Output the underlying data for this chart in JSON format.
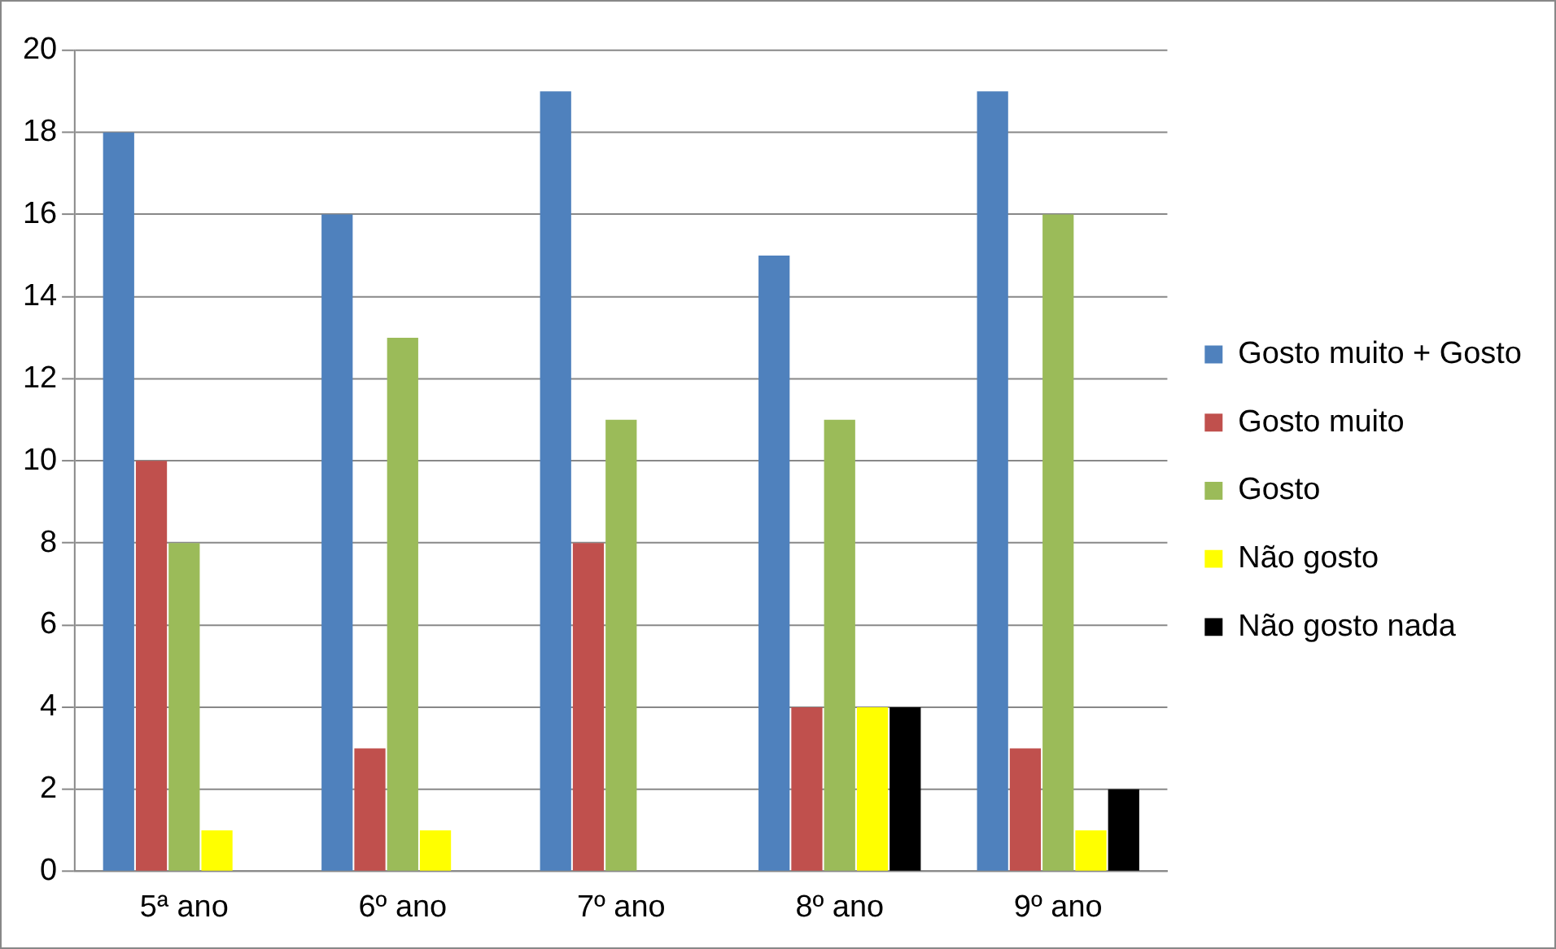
{
  "chart_data": {
    "type": "bar",
    "categories": [
      "5ª ano",
      "6º ano",
      "7º ano",
      "8º ano",
      "9º ano"
    ],
    "series": [
      {
        "name": "Gosto muito + Gosto",
        "color": "#4f81bd",
        "values": [
          18,
          16,
          19,
          15,
          19
        ]
      },
      {
        "name": "Gosto muito",
        "color": "#c0504d",
        "values": [
          10,
          3,
          8,
          4,
          3
        ]
      },
      {
        "name": "Gosto",
        "color": "#9bbb59",
        "values": [
          8,
          13,
          11,
          11,
          16
        ]
      },
      {
        "name": "Não gosto",
        "color": "#ffff00",
        "values": [
          1,
          1,
          0,
          4,
          1
        ]
      },
      {
        "name": "Não gosto nada",
        "color": "#000000",
        "values": [
          0,
          0,
          0,
          4,
          2
        ]
      }
    ],
    "ylim": [
      0,
      20
    ],
    "yticks": [
      0,
      2,
      4,
      6,
      8,
      10,
      12,
      14,
      16,
      18,
      20
    ],
    "grid": "y",
    "legend": "right"
  }
}
